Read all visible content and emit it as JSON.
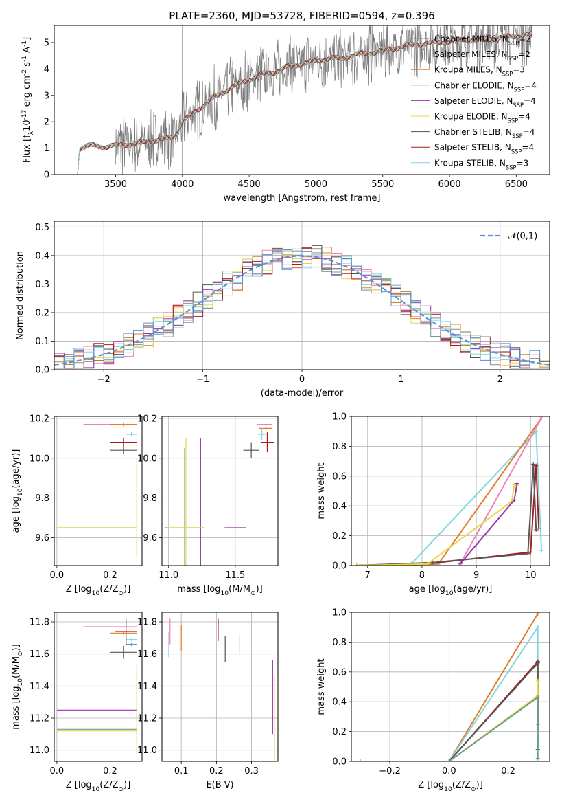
{
  "figure": {
    "title": "PLATE=2360, MJD=53728, FIBERID=0594, z=0.396"
  },
  "legend_spectrum": [
    {
      "label": "Chabrier MILES, N$_{SSP}$=2",
      "color": "#8c8c8c"
    },
    {
      "label": "Salpeter MILES, N$_{SSP}$=2",
      "color": "#f080b8"
    },
    {
      "label": "Kroupa MILES, N$_{SSP}$=3",
      "color": "#e07b28"
    },
    {
      "label": "Chabrier ELODIE, N$_{SSP}$=4",
      "color": "#6a9e8e"
    },
    {
      "label": "Salpeter ELODIE, N$_{SSP}$=4",
      "color": "#9932a8"
    },
    {
      "label": "Kroupa ELODIE, N$_{SSP}$=4",
      "color": "#e6d84a"
    },
    {
      "label": "Chabrier STELIB, N$_{SSP}$=4",
      "color": "#555555"
    },
    {
      "label": "Salpeter STELIB, N$_{SSP}$=4",
      "color": "#b01818"
    },
    {
      "label": "Kroupa STELIB, N$_{SSP}$=3",
      "color": "#7fd8e0"
    }
  ],
  "legend_residual": {
    "label": "$\\mathcal{N}(0,1)$",
    "color": "#5b8fd6"
  },
  "chart_data": [
    {
      "id": "spectrum",
      "type": "line",
      "xlabel": "wavelength [Angstrom, rest frame]",
      "ylabel": "Flux [f$_\\lambda$10$^{-17}$ erg cm$^{-2}$ s$^{-1}$ A$^{-1}$]",
      "xlim": [
        3040,
        6750
      ],
      "ylim": [
        0,
        5.65
      ],
      "xticks": [
        3500,
        4000,
        4500,
        5000,
        5500,
        6000,
        6500
      ],
      "yticks": [
        0,
        1,
        2,
        3,
        4,
        5
      ],
      "grid": false,
      "legend_position": "right",
      "continuum": {
        "x": [
          3215,
          3230,
          3300,
          3400,
          3500,
          3600,
          3700,
          3800,
          3900,
          3950,
          4000,
          4100,
          4200,
          4300,
          4400,
          4500,
          4600,
          4700,
          4800,
          4900,
          5000,
          5100,
          5200,
          5300,
          5400,
          5500,
          5600,
          5700,
          5800,
          5900,
          6000,
          6100,
          6200,
          6300,
          6400,
          6500,
          6600
        ],
        "y": [
          0,
          1.0,
          1.1,
          1.05,
          1.1,
          1.15,
          1.2,
          1.3,
          1.35,
          1.5,
          2.0,
          2.4,
          2.8,
          3.1,
          3.4,
          3.6,
          3.8,
          3.9,
          4.1,
          4.2,
          4.3,
          4.4,
          4.4,
          4.55,
          4.6,
          4.7,
          4.8,
          4.9,
          4.95,
          5.0,
          5.05,
          5.1,
          5.1,
          5.15,
          5.2,
          5.25,
          5.3
        ]
      },
      "noisy_data_start": 3500
    },
    {
      "id": "residuals",
      "type": "histogram",
      "xlabel": "(data-model)/error",
      "ylabel": "Normed distribution",
      "xlim": [
        -2.5,
        2.5
      ],
      "ylim": [
        0,
        0.52
      ],
      "xticks": [
        -2,
        -1,
        0,
        1,
        2
      ],
      "xtick_labels": [
        "−2",
        "−1",
        "0",
        "1",
        "2"
      ],
      "yticks": [
        0,
        0.1,
        0.2,
        0.3,
        0.4,
        0.5
      ],
      "ytick_labels": [
        "0.0",
        "0.1",
        "0.2",
        "0.3",
        "0.4",
        "0.5"
      ],
      "grid": true,
      "legend_position": "top-right",
      "bin_width": 0.1,
      "bin_start": -2.5,
      "histogram_base": [
        0.03,
        0.03,
        0.035,
        0.04,
        0.045,
        0.05,
        0.06,
        0.065,
        0.075,
        0.085,
        0.1,
        0.11,
        0.12,
        0.14,
        0.155,
        0.17,
        0.19,
        0.21,
        0.23,
        0.25,
        0.27,
        0.29,
        0.31,
        0.33,
        0.345,
        0.36,
        0.37,
        0.38,
        0.39,
        0.4,
        0.405,
        0.4,
        0.39,
        0.375,
        0.36,
        0.345,
        0.33,
        0.31,
        0.29,
        0.27,
        0.25,
        0.23,
        0.21,
        0.19,
        0.17,
        0.15,
        0.13,
        0.115,
        0.1,
        0.085,
        0.075,
        0.065,
        0.055,
        0.05,
        0.04,
        0.035,
        0.03,
        0.028,
        0.025,
        0.02,
        0.02,
        0.018,
        0.016,
        0.014,
        0.012,
        0.01,
        0.01,
        0.009,
        0.008,
        0.007,
        0.006,
        0.005,
        0.005,
        0.004,
        0.004,
        0.003,
        0.003,
        0.003,
        0.002,
        0.002,
        0.002,
        0.002,
        0.002,
        0.002,
        0.002,
        0.002,
        0.002,
        0.002,
        0.002,
        0.002,
        0.002,
        0.002,
        0.002,
        0.002,
        0.002,
        0.002,
        0.002,
        0.002,
        0.002,
        0.002
      ],
      "gaussian": {
        "mean": 0,
        "sigma": 1
      }
    },
    {
      "id": "z-age",
      "type": "errorbar",
      "xlabel": "Z [log$_{10}$($Z/Z_\\odot$)]",
      "ylabel": "age  [log$_{10}$($age/yr$)]",
      "xlim": [
        -0.01,
        0.32
      ],
      "ylim": [
        9.46,
        10.21
      ],
      "xticks": [
        0.0,
        0.2
      ],
      "xtick_labels": [
        "0.0",
        "0.2"
      ],
      "yticks": [
        9.6,
        9.8,
        10.0,
        10.2
      ],
      "ytick_labels": [
        "9.6",
        "9.8",
        "10.0",
        "10.2"
      ],
      "grid": true,
      "points": [
        {
          "x": 0.2,
          "y": 10.17,
          "xerr": 0.1,
          "yerr": 0.0,
          "color": "#f080b8"
        },
        {
          "x": 0.25,
          "y": 10.17,
          "xerr": 0.05,
          "yerr": 0.01,
          "color": "#e07b28"
        },
        {
          "x": 0.28,
          "y": 10.12,
          "xerr": 0.02,
          "yerr": 0.01,
          "color": "#7fd8e0"
        },
        {
          "x": 0.25,
          "y": 10.08,
          "xerr": 0.05,
          "yerr": 0.02,
          "color": "#b01818"
        },
        {
          "x": 0.25,
          "y": 10.04,
          "xerr": 0.05,
          "yerr": 0.02,
          "color": "#555555"
        },
        {
          "x": 0.15,
          "y": 9.65,
          "xerr": 0.15,
          "yerr": 0.0,
          "color": "#6a9e8e"
        },
        {
          "x": 0.15,
          "y": 9.65,
          "xerr": 0.15,
          "yerr": 0.0,
          "color": "#e6d84a"
        },
        {
          "x": 0.3,
          "y": 9.75,
          "xerr": 0.0,
          "yerr": 0.25,
          "color": "#e6d84a"
        }
      ]
    },
    {
      "id": "mass-age",
      "type": "errorbar",
      "xlabel": "mass [log$_{10}$($M/M_\\odot$)]",
      "ylabel": "",
      "xlim": [
        10.95,
        11.82
      ],
      "ylim": [
        9.46,
        10.21
      ],
      "xticks": [
        11.0,
        11.5
      ],
      "xtick_labels": [
        "11.0",
        "11.5"
      ],
      "yticks": [
        9.6,
        9.8,
        10.0,
        10.2
      ],
      "ytick_labels": [
        "9.6",
        "9.8",
        "10.0",
        "10.2"
      ],
      "grid": true,
      "points": [
        {
          "x": 11.72,
          "y": 10.17,
          "xerr": 0.06,
          "yerr": 0.0,
          "color": "#f080b8"
        },
        {
          "x": 11.73,
          "y": 10.15,
          "xerr": 0.05,
          "yerr": 0.02,
          "color": "#e07b28"
        },
        {
          "x": 11.7,
          "y": 10.12,
          "xerr": 0.03,
          "yerr": 0.03,
          "color": "#7fd8e0"
        },
        {
          "x": 11.74,
          "y": 10.08,
          "xerr": 0.05,
          "yerr": 0.05,
          "color": "#b01818"
        },
        {
          "x": 11.62,
          "y": 10.04,
          "xerr": 0.06,
          "yerr": 0.04,
          "color": "#555555"
        },
        {
          "x": 11.24,
          "y": 9.65,
          "xerr": 0.0,
          "yerr": 0.45,
          "color": "#9932a8"
        },
        {
          "x": 11.12,
          "y": 9.65,
          "xerr": 0.15,
          "yerr": 0.4,
          "color": "#6a9e8e"
        },
        {
          "x": 11.13,
          "y": 9.65,
          "xerr": 0.14,
          "yerr": 0.45,
          "color": "#e6d84a"
        },
        {
          "x": 11.5,
          "y": 9.65,
          "xerr": 0.08,
          "yerr": 0.0,
          "color": "#9932a8"
        }
      ]
    },
    {
      "id": "age-weight",
      "type": "line",
      "xlabel": "age  [log$_{10}$($age/yr$)]",
      "ylabel": "mass weight",
      "xlim": [
        6.7,
        10.35
      ],
      "ylim": [
        0,
        1.0
      ],
      "xticks": [
        7,
        8,
        9,
        10
      ],
      "xtick_labels": [
        "7",
        "8",
        "9",
        "10"
      ],
      "yticks": [
        0,
        0.2,
        0.4,
        0.6,
        0.8,
        1.0
      ],
      "ytick_labels": [
        "0.0",
        "0.2",
        "0.4",
        "0.6",
        "0.8",
        "1.0"
      ],
      "grid": true,
      "series": [
        {
          "color": "#7fd8e0",
          "x": [
            6.8,
            7.8,
            10.1,
            10.2
          ],
          "y": [
            0,
            0.01,
            0.9,
            0.1
          ]
        },
        {
          "color": "#e07b28",
          "x": [
            6.8,
            8.3,
            10.2
          ],
          "y": [
            0,
            0.01,
            0.99
          ]
        },
        {
          "color": "#f080b8",
          "x": [
            8.7,
            10.2
          ],
          "y": [
            0.01,
            0.99
          ]
        },
        {
          "color": "#b01818",
          "x": [
            6.8,
            8.3,
            10.0,
            10.1,
            10.15
          ],
          "y": [
            0,
            0.02,
            0.09,
            0.67,
            0.25
          ]
        },
        {
          "color": "#555555",
          "x": [
            6.8,
            8.2,
            9.95,
            10.05,
            10.1
          ],
          "y": [
            0,
            0.02,
            0.08,
            0.68,
            0.24
          ]
        },
        {
          "color": "#e6d84a",
          "x": [
            6.8,
            8.1,
            9.65,
            9.7,
            9.75
          ],
          "y": [
            0,
            0.01,
            0.43,
            0.54,
            0.54
          ]
        },
        {
          "color": "#9932a8",
          "x": [
            8.7,
            9.7,
            9.75
          ],
          "y": [
            0.01,
            0.44,
            0.55
          ]
        }
      ]
    },
    {
      "id": "z-mass",
      "type": "errorbar",
      "xlabel": "Z [log$_{10}$($Z/Z_\\odot$)]",
      "ylabel": "mass [log$_{10}$($M/M_\\odot$)]",
      "xlim": [
        -0.01,
        0.32
      ],
      "ylim": [
        10.93,
        11.86
      ],
      "xticks": [
        0.0,
        0.2
      ],
      "xtick_labels": [
        "0.0",
        "0.2"
      ],
      "yticks": [
        11.0,
        11.2,
        11.4,
        11.6,
        11.8
      ],
      "ytick_labels": [
        "11.0",
        "11.2",
        "11.4",
        "11.6",
        "11.8"
      ],
      "grid": true,
      "points": [
        {
          "x": 0.2,
          "y": 11.77,
          "xerr": 0.1,
          "yerr": 0.0,
          "color": "#f080b8"
        },
        {
          "x": 0.25,
          "y": 11.73,
          "xerr": 0.05,
          "yerr": 0.01,
          "color": "#e07b28"
        },
        {
          "x": 0.28,
          "y": 11.69,
          "xerr": 0.02,
          "yerr": 0.01,
          "color": "#7fd8e0"
        },
        {
          "x": 0.28,
          "y": 11.66,
          "xerr": 0.02,
          "yerr": 0.01,
          "color": "#5b8fd6"
        },
        {
          "x": 0.26,
          "y": 11.74,
          "xerr": 0.04,
          "yerr": 0.08,
          "color": "#b01818"
        },
        {
          "x": 0.25,
          "y": 11.61,
          "xerr": 0.05,
          "yerr": 0.04,
          "color": "#555555"
        },
        {
          "x": 0.15,
          "y": 11.25,
          "xerr": 0.15,
          "yerr": 0.0,
          "color": "#9932a8"
        },
        {
          "x": 0.15,
          "y": 11.13,
          "xerr": 0.15,
          "yerr": 0.0,
          "color": "#6a9e8e"
        },
        {
          "x": 0.15,
          "y": 11.12,
          "xerr": 0.15,
          "yerr": 0.0,
          "color": "#e6d84a"
        },
        {
          "x": 0.3,
          "y": 11.25,
          "xerr": 0.0,
          "yerr": 0.28,
          "color": "#e6d84a"
        }
      ]
    },
    {
      "id": "ebv-mass",
      "type": "errorbar",
      "xlabel": "E(B-V)",
      "ylabel": "",
      "xlim": [
        0.045,
        0.375
      ],
      "ylim": [
        10.93,
        11.86
      ],
      "xticks": [
        0.1,
        0.2,
        0.3
      ],
      "xtick_labels": [
        "0.1",
        "0.2",
        "0.3"
      ],
      "yticks": [
        11.0,
        11.2,
        11.4,
        11.6,
        11.8
      ],
      "ytick_labels": [
        "11.0",
        "11.2",
        "11.4",
        "11.6",
        "11.8"
      ],
      "grid": true,
      "points": [
        {
          "x": 0.065,
          "y": 11.66,
          "xerr": 0.0,
          "yerr": 0.08,
          "color": "#5b8fd6"
        },
        {
          "x": 0.068,
          "y": 11.74,
          "xerr": 0.0,
          "yerr": 0.08,
          "color": "#f080b8"
        },
        {
          "x": 0.1,
          "y": 11.7,
          "xerr": 0.0,
          "yerr": 0.08,
          "color": "#e07b28"
        },
        {
          "x": 0.205,
          "y": 11.75,
          "xerr": 0.0,
          "yerr": 0.07,
          "color": "#b01818"
        },
        {
          "x": 0.225,
          "y": 11.63,
          "xerr": 0.0,
          "yerr": 0.08,
          "color": "#555555"
        },
        {
          "x": 0.265,
          "y": 11.66,
          "xerr": 0.0,
          "yerr": 0.06,
          "color": "#7fd8e0"
        },
        {
          "x": 0.36,
          "y": 11.33,
          "xerr": 0.0,
          "yerr": 0.23,
          "color": "#9932a8"
        },
        {
          "x": 0.365,
          "y": 11.2,
          "xerr": 0.0,
          "yerr": 0.27,
          "color": "#e6d84a"
        }
      ]
    },
    {
      "id": "z-weight",
      "type": "line",
      "xlabel": "Z [log$_{10}$($Z/Z_\\odot$)]",
      "ylabel": "mass weight",
      "xlim": [
        -0.33,
        0.34
      ],
      "ylim": [
        0,
        1.0
      ],
      "xticks": [
        -0.2,
        0.0,
        0.2
      ],
      "xtick_labels": [
        "−0.2",
        "0.0",
        "0.2"
      ],
      "yticks": [
        0,
        0.2,
        0.4,
        0.6,
        0.8,
        1.0
      ],
      "ytick_labels": [
        "0.0",
        "0.2",
        "0.4",
        "0.6",
        "0.8",
        "1.0"
      ],
      "grid": true,
      "series": [
        {
          "color": "#e07b28",
          "x": [
            -0.3,
            0.0,
            0.3
          ],
          "y": [
            0,
            0,
            0.99
          ]
        },
        {
          "color": "#7fd8e0",
          "x": [
            0.0,
            0.3,
            0.3
          ],
          "y": [
            0,
            0.9,
            0.08
          ]
        },
        {
          "color": "#b01818",
          "x": [
            0.0,
            0.3,
            0.3
          ],
          "y": [
            0,
            0.67,
            0.25
          ]
        },
        {
          "color": "#555555",
          "x": [
            0.0,
            0.3,
            0.3
          ],
          "y": [
            0,
            0.66,
            0.08
          ]
        },
        {
          "color": "#e6d84a",
          "x": [
            0.0,
            0.3,
            0.3
          ],
          "y": [
            0,
            0.44,
            0.54
          ]
        },
        {
          "color": "#6a9e8e",
          "x": [
            0.0,
            0.3,
            0.3
          ],
          "y": [
            0,
            0.43,
            0.02
          ]
        }
      ]
    }
  ]
}
